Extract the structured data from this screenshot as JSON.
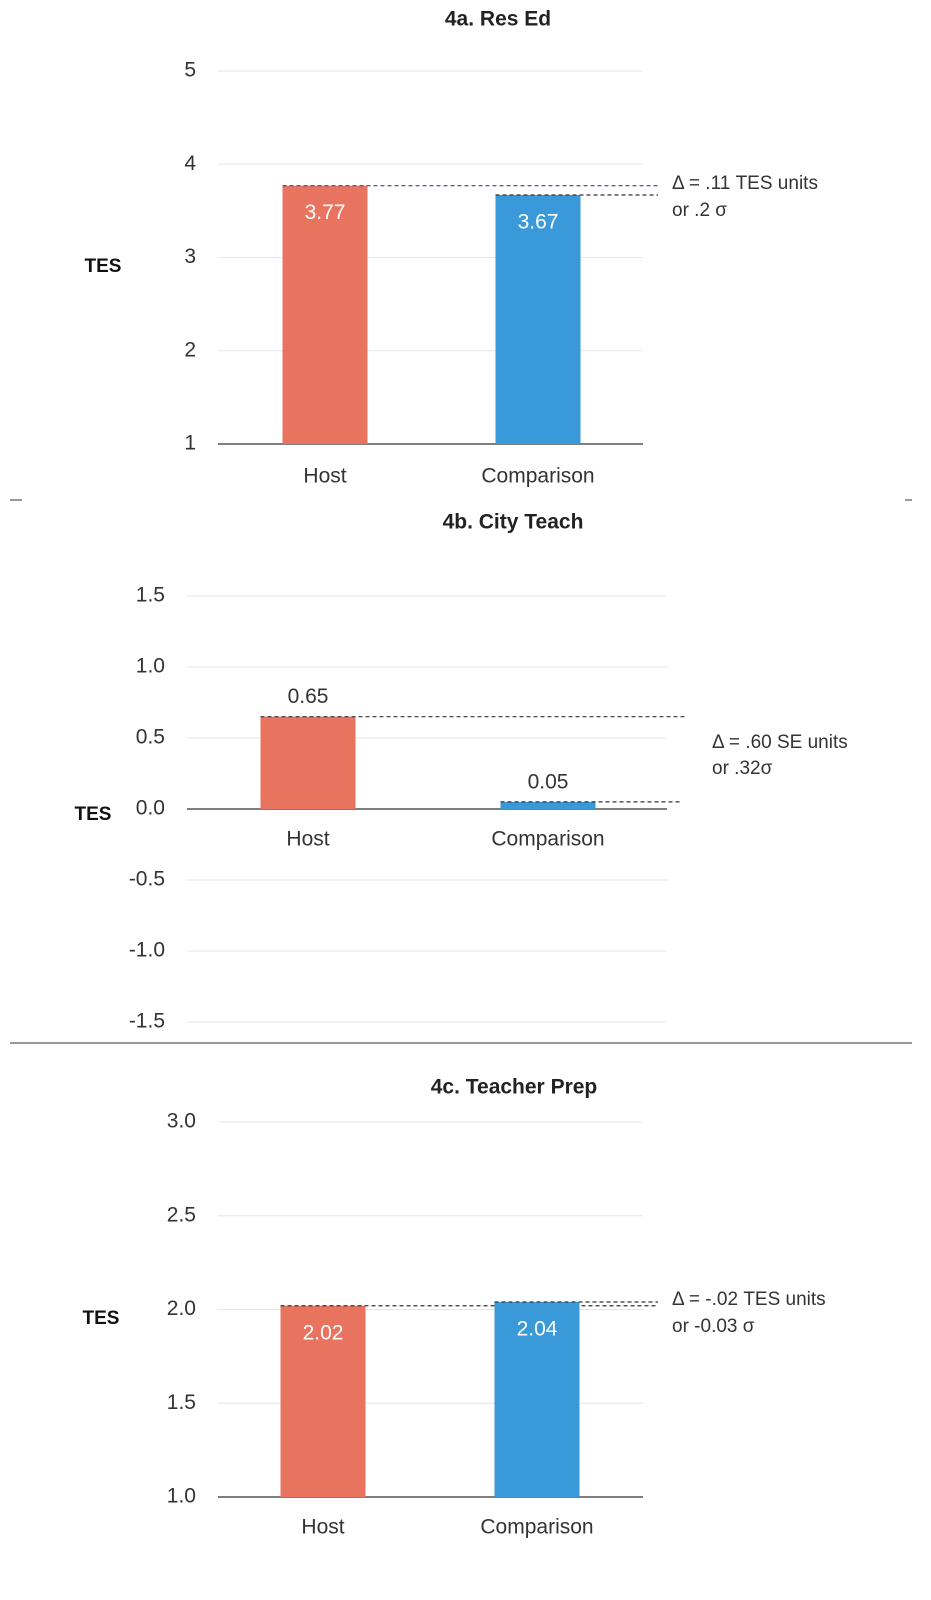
{
  "chart_data": [
    {
      "type": "bar",
      "title": "4a. Res Ed",
      "y_label": "TES",
      "categories": [
        "Host",
        "Comparison"
      ],
      "values": [
        3.77,
        3.67
      ],
      "colors": [
        "#e8735f",
        "#3a9ad9"
      ],
      "label_position": "inside",
      "ylim": [
        1,
        5
      ],
      "yticks": [
        1,
        2,
        3,
        4,
        5
      ],
      "grid": true,
      "annotations": [
        "Δ = .11 TES units",
        "or .2 σ"
      ]
    },
    {
      "type": "bar",
      "title": "4b. City Teach",
      "y_label": "TES",
      "categories": [
        "Host",
        "Comparison"
      ],
      "values": [
        0.65,
        0.05
      ],
      "colors": [
        "#e8735f",
        "#3a9ad9"
      ],
      "label_position": "above",
      "ylim": [
        -1.5,
        1.5
      ],
      "yticks": [
        -1.5,
        {
          "value": -1,
          "label": "-1.0"
        },
        -0.5,
        {
          "value": 0,
          "label": "0.0"
        },
        0.5,
        {
          "value": 1,
          "label": "1.0"
        },
        1.5
      ],
      "grid": true,
      "annotations": [
        "Δ = .60 SE units",
        "or .32σ"
      ]
    },
    {
      "type": "bar",
      "title": "4c. Teacher Prep",
      "y_label": "TES",
      "categories": [
        "Host",
        "Comparison"
      ],
      "values": [
        2.02,
        2.04
      ],
      "colors": [
        "#e8735f",
        "#3a9ad9"
      ],
      "label_position": "inside",
      "ylim": [
        1,
        3
      ],
      "yticks": [
        {
          "value": 1,
          "label": "1.0"
        },
        1.5,
        {
          "value": 2,
          "label": "2.0"
        },
        2.5,
        {
          "value": 3,
          "label": "3.0"
        }
      ],
      "grid": true,
      "annotations": [
        "Δ = -.02 TES units",
        "or -0.03 σ"
      ]
    }
  ]
}
